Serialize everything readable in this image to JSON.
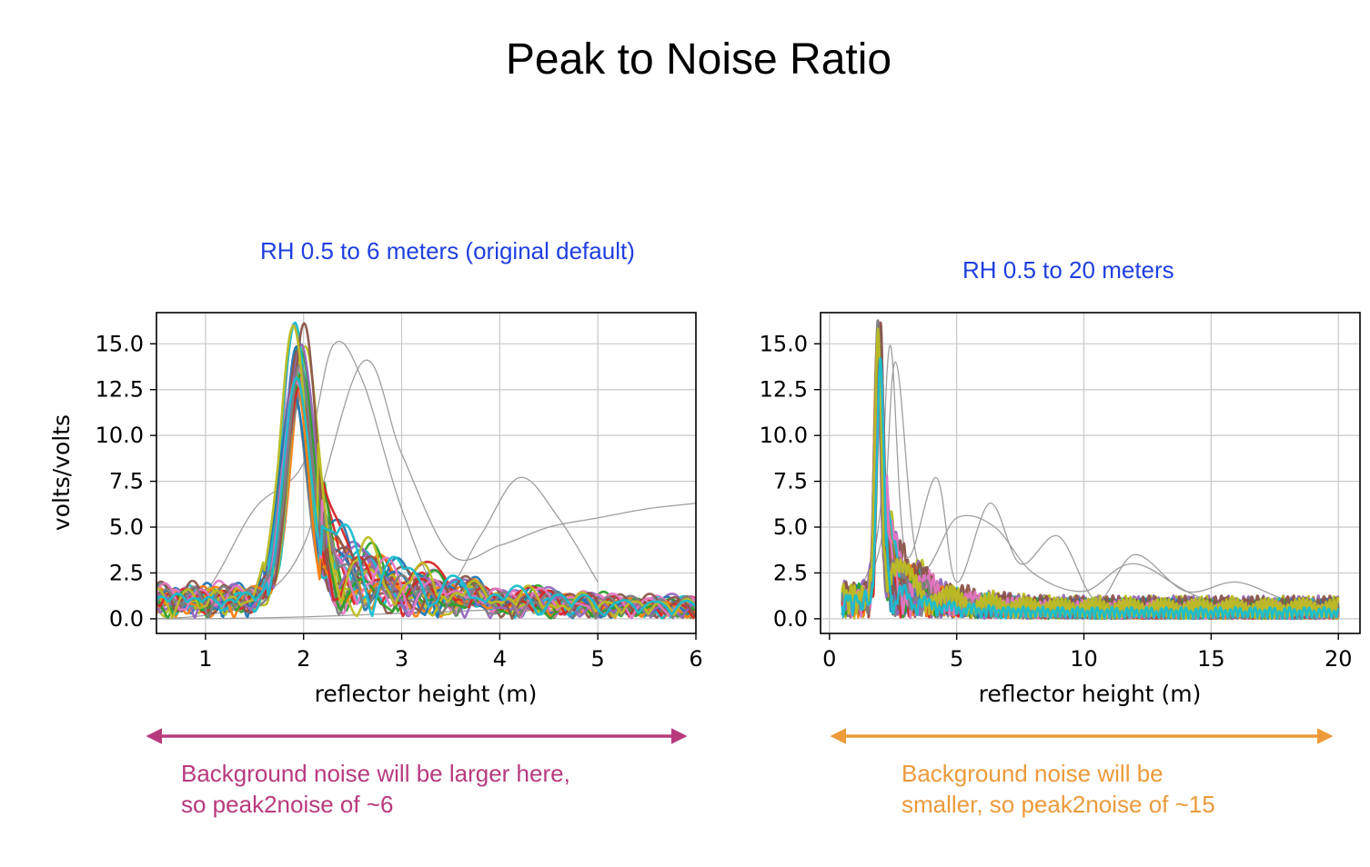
{
  "slide": {
    "title": "Peak to Noise Ratio"
  },
  "annotations": {
    "left_note_line1": "Background noise will be larger here,",
    "left_note_line2": "so peak2noise of ~6",
    "right_note_line1": "Background noise will be",
    "right_note_line2": "smaller, so peak2noise of ~15",
    "left_arrow_color": "#b83a7e",
    "right_arrow_color": "#ec9a3a"
  },
  "colors": {
    "panel_title": "#1f3fe0",
    "gray_trace": "#9e9e9e",
    "series_palette": [
      "#1f77b4",
      "#ff7f0e",
      "#2ca02c",
      "#d62728",
      "#9467bd",
      "#8c564b",
      "#e377c2",
      "#7f7f7f",
      "#bcbd22",
      "#17becf"
    ]
  },
  "chart_data": [
    {
      "type": "line",
      "title": "RH 0.5 to 6 meters (original default)",
      "xlabel": "reflector height (m)",
      "ylabel": "volts/volts",
      "xlim": [
        0.5,
        6
      ],
      "ylim": [
        -0.8,
        16.7
      ],
      "xticks": [
        1,
        2,
        3,
        4,
        5,
        6
      ],
      "xtick_labels": [
        "1",
        "2",
        "3",
        "4",
        "5",
        "6"
      ],
      "yticks": [
        0,
        2.5,
        5,
        7.5,
        10,
        12.5,
        15
      ],
      "ytick_labels": [
        "0.0",
        "2.5",
        "5.0",
        "7.5",
        "10.0",
        "12.5",
        "15.0"
      ],
      "grid": true,
      "peak": {
        "x": 1.95,
        "y_range": [
          11.8,
          15.9
        ]
      },
      "colored_series_count": 30,
      "gray_series": [
        {
          "x": [
            0.5,
            1.0,
            1.5,
            2.0,
            2.3,
            2.6,
            3.0,
            3.4,
            3.8,
            4.2,
            4.6,
            5.0
          ],
          "y": [
            0.3,
            1.5,
            6.0,
            8.5,
            14.9,
            13.0,
            6.0,
            1.5,
            4.5,
            7.7,
            5.5,
            2.0
          ]
        },
        {
          "x": [
            0.5,
            1.0,
            1.5,
            2.0,
            2.6,
            3.0,
            3.5,
            4.0,
            4.5,
            5.0,
            5.5,
            6.0
          ],
          "y": [
            0.0,
            0.2,
            1.0,
            4.0,
            14.0,
            9.0,
            3.5,
            4.0,
            5.0,
            5.5,
            6.0,
            6.3
          ]
        },
        {
          "x": [
            0.5,
            1.0,
            2.0,
            3.0,
            4.0,
            5.0,
            6.0
          ],
          "y": [
            0.0,
            0.0,
            0.1,
            0.3,
            0.5,
            0.7,
            0.9
          ]
        }
      ]
    },
    {
      "type": "line",
      "title": "RH 0.5 to 20 meters",
      "xlabel": "reflector height (m)",
      "ylabel": "",
      "xlim": [
        -0.35,
        20.85
      ],
      "ylim": [
        -0.8,
        16.7
      ],
      "xticks": [
        0,
        5,
        10,
        15,
        20
      ],
      "xtick_labels": [
        "0",
        "5",
        "10",
        "15",
        "20"
      ],
      "yticks": [
        0,
        2.5,
        5,
        7.5,
        10,
        12.5,
        15
      ],
      "ytick_labels": [
        "0.0",
        "2.5",
        "5.0",
        "7.5",
        "10.0",
        "12.5",
        "15.0"
      ],
      "grid": true,
      "peak": {
        "x": 1.95,
        "y_range": [
          11.8,
          15.9
        ]
      },
      "colored_series_count": 30,
      "gray_series": [
        {
          "x": [
            0.5,
            1.5,
            2.0,
            2.4,
            3.0,
            4.2,
            5.0,
            6.3,
            7.5,
            9.0,
            10.5,
            12.0,
            14.0,
            16.0,
            18.0,
            20.0
          ],
          "y": [
            0.3,
            2.5,
            6.0,
            14.9,
            3.5,
            7.7,
            2.0,
            6.3,
            3.0,
            4.5,
            1.0,
            3.5,
            1.5,
            2.0,
            1.0,
            0.5
          ]
        },
        {
          "x": [
            0.5,
            2.0,
            2.6,
            3.5,
            5.0,
            6.5,
            8.0,
            10.0,
            12.0,
            15.0,
            20.0
          ],
          "y": [
            0.0,
            4.0,
            14.0,
            3.0,
            5.5,
            5.0,
            2.5,
            1.5,
            3.0,
            1.0,
            0.8
          ]
        }
      ]
    }
  ]
}
